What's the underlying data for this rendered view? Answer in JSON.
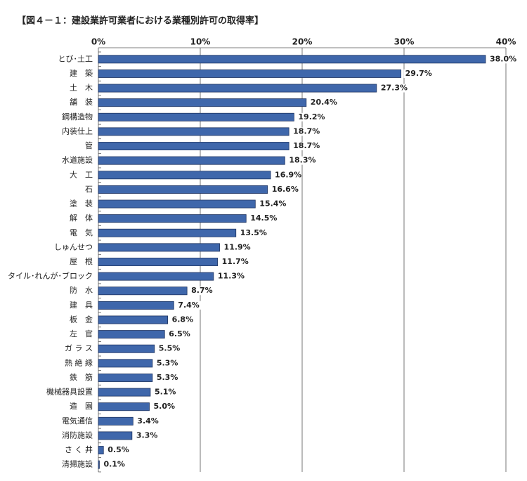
{
  "chart_data": {
    "type": "bar",
    "orientation": "horizontal",
    "title": "【図４－１：建設業許可業者における業種別許可の取得率】",
    "categories": [
      "とび･土工",
      "建　築",
      "土　木",
      "舗　装",
      "鋼構造物",
      "内装仕上",
      "管",
      "水道施設",
      "大　工",
      "石",
      "塗　装",
      "解　体",
      "電　気",
      "しゅんせつ",
      "屋　根",
      "タイル･れんが･ブロック",
      "防　水",
      "建　具",
      "板　金",
      "左　官",
      "ガ ラ ス",
      "熱 絶 縁",
      "鉄　筋",
      "機械器具設置",
      "造　園",
      "電気通信",
      "消防施設",
      "さ く 井",
      "清掃施設"
    ],
    "values": [
      38.0,
      29.7,
      27.3,
      20.4,
      19.2,
      18.7,
      18.7,
      18.3,
      16.9,
      16.6,
      15.4,
      14.5,
      13.5,
      11.9,
      11.7,
      11.3,
      8.7,
      7.4,
      6.8,
      6.5,
      5.5,
      5.3,
      5.3,
      5.1,
      5.0,
      3.4,
      3.3,
      0.5,
      0.1
    ],
    "value_labels": [
      "38.0%",
      "29.7%",
      "27.3%",
      "20.4%",
      "19.2%",
      "18.7%",
      "18.7%",
      "18.3%",
      "16.9%",
      "16.6%",
      "15.4%",
      "14.5%",
      "13.5%",
      "11.9%",
      "11.7%",
      "11.3%",
      "8.7%",
      "7.4%",
      "6.8%",
      "6.5%",
      "5.5%",
      "5.3%",
      "5.3%",
      "5.1%",
      "5.0%",
      "3.4%",
      "3.3%",
      "0.5%",
      "0.1%"
    ],
    "color": "#3f67ab",
    "xlim": [
      0,
      40
    ],
    "xticks": [
      {
        "value": 0,
        "label": "0%"
      },
      {
        "value": 10,
        "label": "10%"
      },
      {
        "value": 20,
        "label": "20%"
      },
      {
        "value": 30,
        "label": "30%"
      },
      {
        "value": 40,
        "label": "40%"
      }
    ],
    "grid": true
  }
}
